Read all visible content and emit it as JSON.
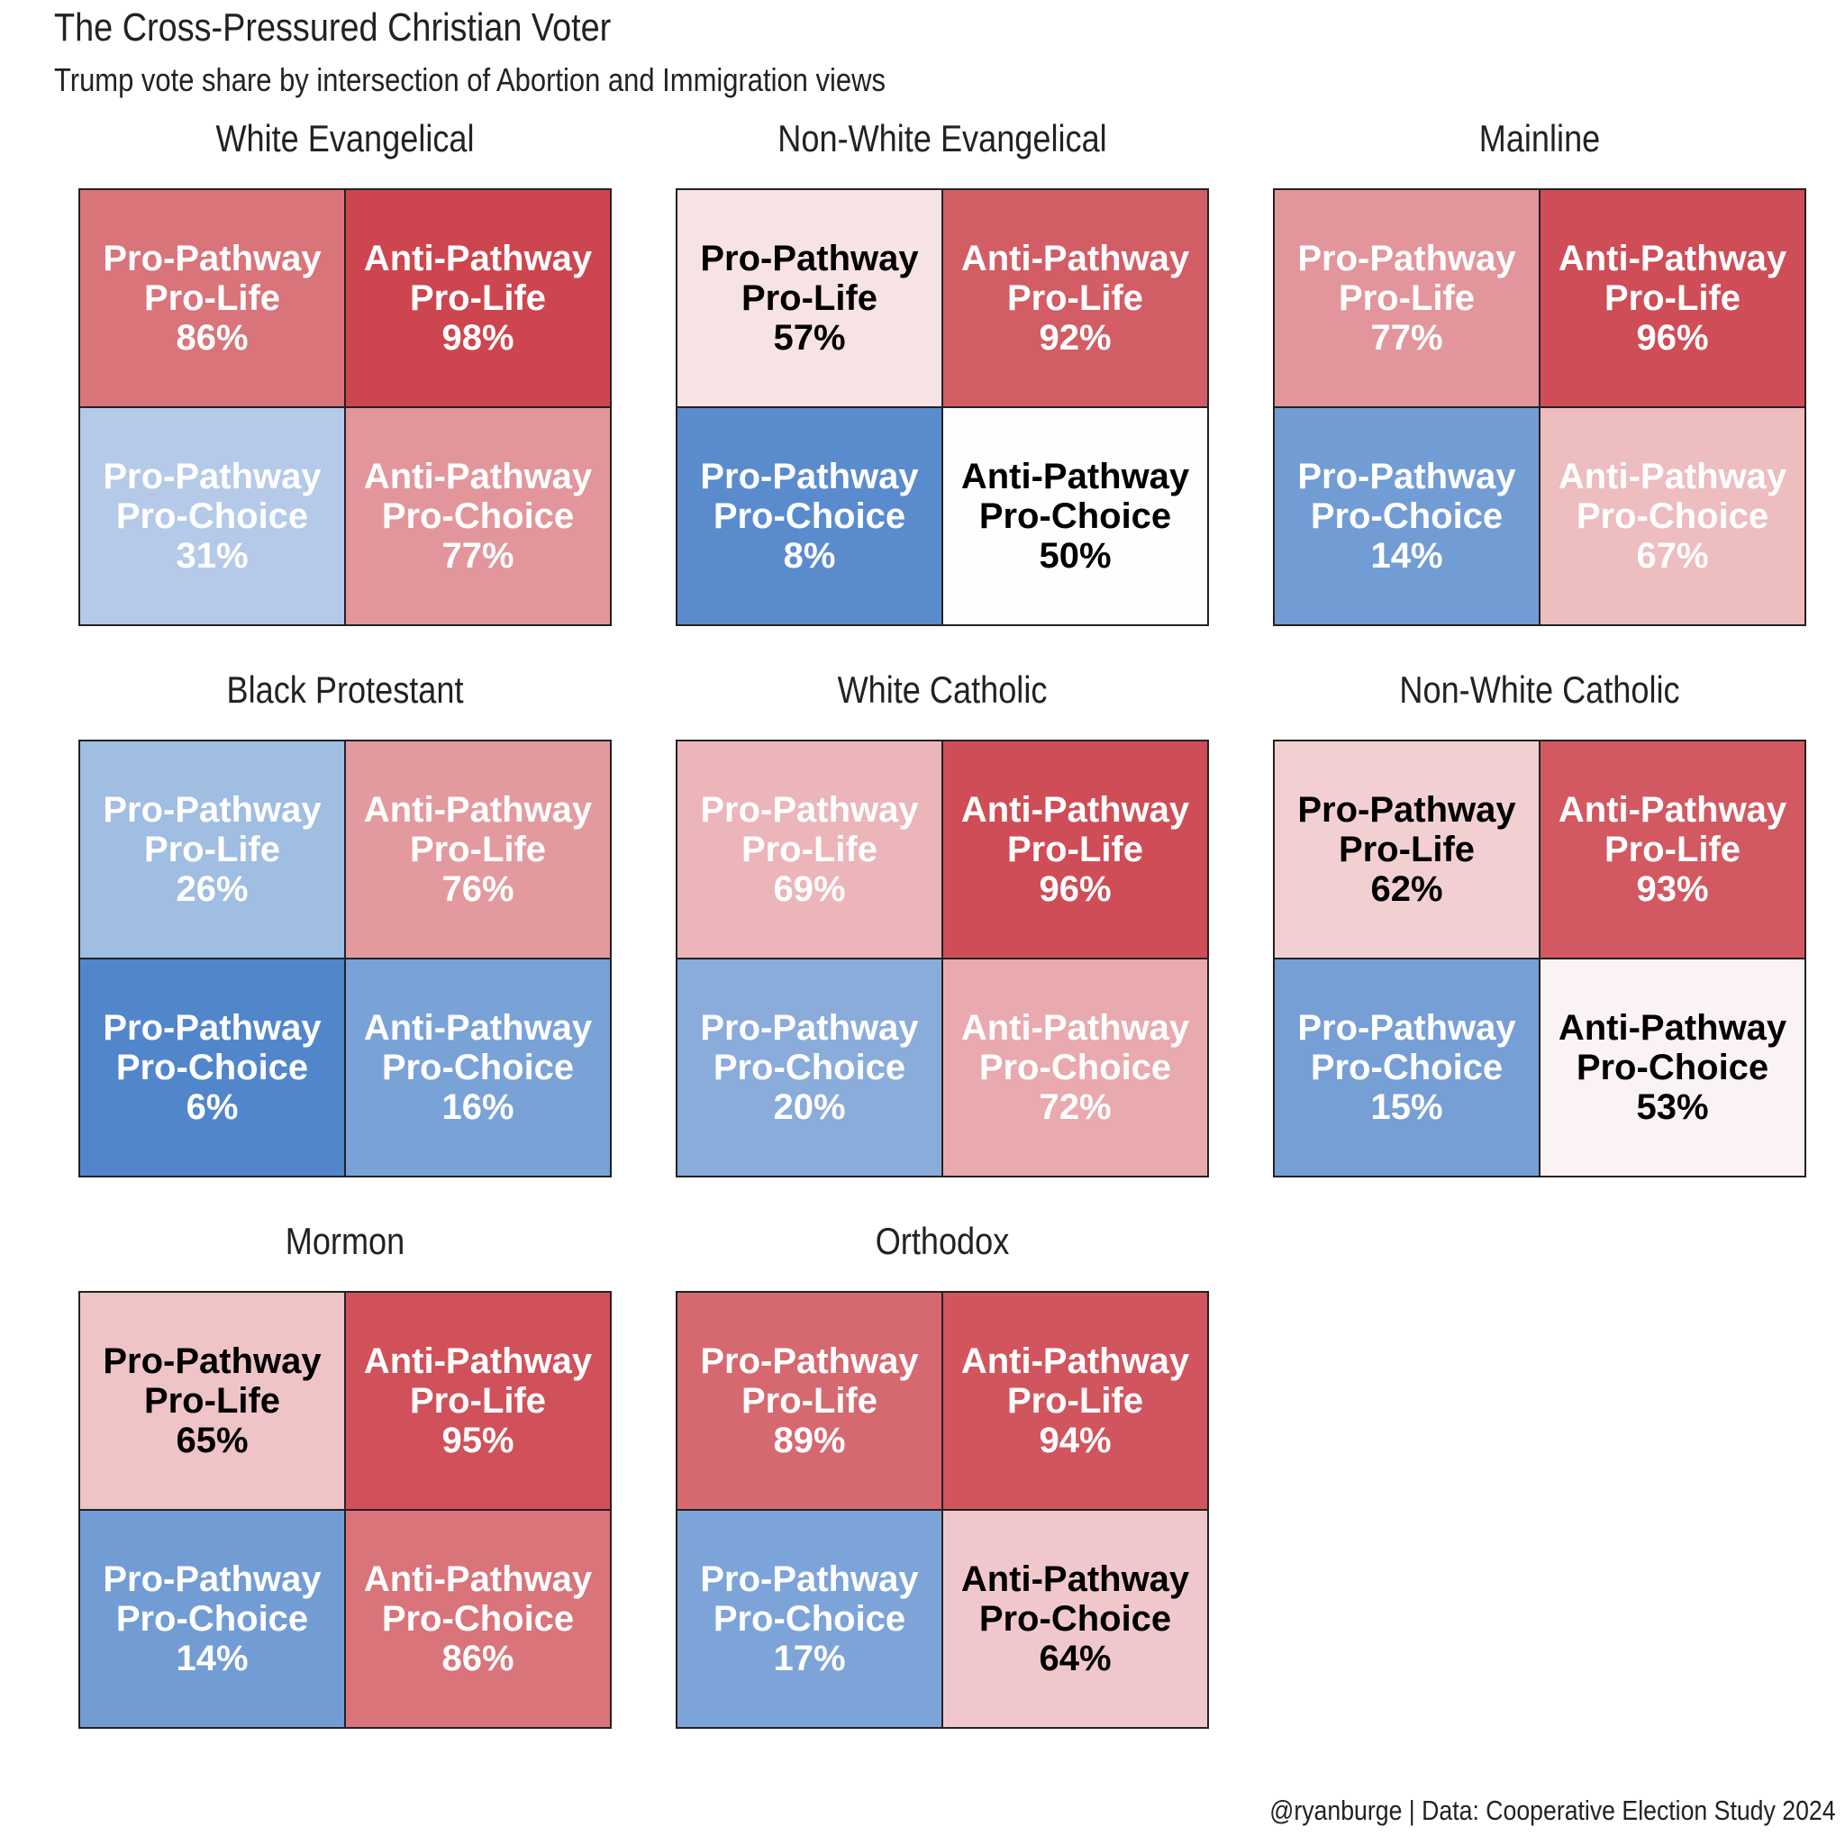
{
  "title": "The Cross-Pressured Christian Voter",
  "subtitle": "Trump vote share by intersection of Abortion and Immigration views",
  "caption": "@ryanburge | Data: Cooperative Election Study 2024",
  "chart_data": {
    "type": "heatmap",
    "title": "The Cross-Pressured Christian Voter",
    "subtitle": "Trump vote share by intersection of Abortion and Immigration views",
    "value_label": "Trump vote share (%)",
    "color_scale": {
      "low": "#3b76c4",
      "mid": "#fefefe",
      "high": "#cb3e48",
      "midpoint": 50
    },
    "panels": [
      {
        "group": "White Evangelical",
        "cells": [
          {
            "immigration": "Pro-Pathway",
            "abortion": "Pro-Life",
            "value": 86
          },
          {
            "immigration": "Anti-Pathway",
            "abortion": "Pro-Life",
            "value": 98
          },
          {
            "immigration": "Pro-Pathway",
            "abortion": "Pro-Choice",
            "value": 31
          },
          {
            "immigration": "Anti-Pathway",
            "abortion": "Pro-Choice",
            "value": 77
          }
        ]
      },
      {
        "group": "Non-White Evangelical",
        "cells": [
          {
            "immigration": "Pro-Pathway",
            "abortion": "Pro-Life",
            "value": 57
          },
          {
            "immigration": "Anti-Pathway",
            "abortion": "Pro-Life",
            "value": 92
          },
          {
            "immigration": "Pro-Pathway",
            "abortion": "Pro-Choice",
            "value": 8
          },
          {
            "immigration": "Anti-Pathway",
            "abortion": "Pro-Choice",
            "value": 50
          }
        ]
      },
      {
        "group": "Mainline",
        "cells": [
          {
            "immigration": "Pro-Pathway",
            "abortion": "Pro-Life",
            "value": 77
          },
          {
            "immigration": "Anti-Pathway",
            "abortion": "Pro-Life",
            "value": 96
          },
          {
            "immigration": "Pro-Pathway",
            "abortion": "Pro-Choice",
            "value": 14
          },
          {
            "immigration": "Anti-Pathway",
            "abortion": "Pro-Choice",
            "value": 67
          }
        ]
      },
      {
        "group": "Black Protestant",
        "cells": [
          {
            "immigration": "Pro-Pathway",
            "abortion": "Pro-Life",
            "value": 26
          },
          {
            "immigration": "Anti-Pathway",
            "abortion": "Pro-Life",
            "value": 76
          },
          {
            "immigration": "Pro-Pathway",
            "abortion": "Pro-Choice",
            "value": 6
          },
          {
            "immigration": "Anti-Pathway",
            "abortion": "Pro-Choice",
            "value": 16
          }
        ]
      },
      {
        "group": "White Catholic",
        "cells": [
          {
            "immigration": "Pro-Pathway",
            "abortion": "Pro-Life",
            "value": 69
          },
          {
            "immigration": "Anti-Pathway",
            "abortion": "Pro-Life",
            "value": 96
          },
          {
            "immigration": "Pro-Pathway",
            "abortion": "Pro-Choice",
            "value": 20
          },
          {
            "immigration": "Anti-Pathway",
            "abortion": "Pro-Choice",
            "value": 72
          }
        ]
      },
      {
        "group": "Non-White Catholic",
        "cells": [
          {
            "immigration": "Pro-Pathway",
            "abortion": "Pro-Life",
            "value": 62
          },
          {
            "immigration": "Anti-Pathway",
            "abortion": "Pro-Life",
            "value": 93
          },
          {
            "immigration": "Pro-Pathway",
            "abortion": "Pro-Choice",
            "value": 15
          },
          {
            "immigration": "Anti-Pathway",
            "abortion": "Pro-Choice",
            "value": 53
          }
        ]
      },
      {
        "group": "Mormon",
        "cells": [
          {
            "immigration": "Pro-Pathway",
            "abortion": "Pro-Life",
            "value": 65
          },
          {
            "immigration": "Anti-Pathway",
            "abortion": "Pro-Life",
            "value": 95
          },
          {
            "immigration": "Pro-Pathway",
            "abortion": "Pro-Choice",
            "value": 14
          },
          {
            "immigration": "Anti-Pathway",
            "abortion": "Pro-Choice",
            "value": 86
          }
        ]
      },
      {
        "group": "Orthodox",
        "cells": [
          {
            "immigration": "Pro-Pathway",
            "abortion": "Pro-Life",
            "value": 89
          },
          {
            "immigration": "Anti-Pathway",
            "abortion": "Pro-Life",
            "value": 94
          },
          {
            "immigration": "Pro-Pathway",
            "abortion": "Pro-Choice",
            "value": 17
          },
          {
            "immigration": "Anti-Pathway",
            "abortion": "Pro-Choice",
            "value": 64
          }
        ]
      }
    ]
  }
}
